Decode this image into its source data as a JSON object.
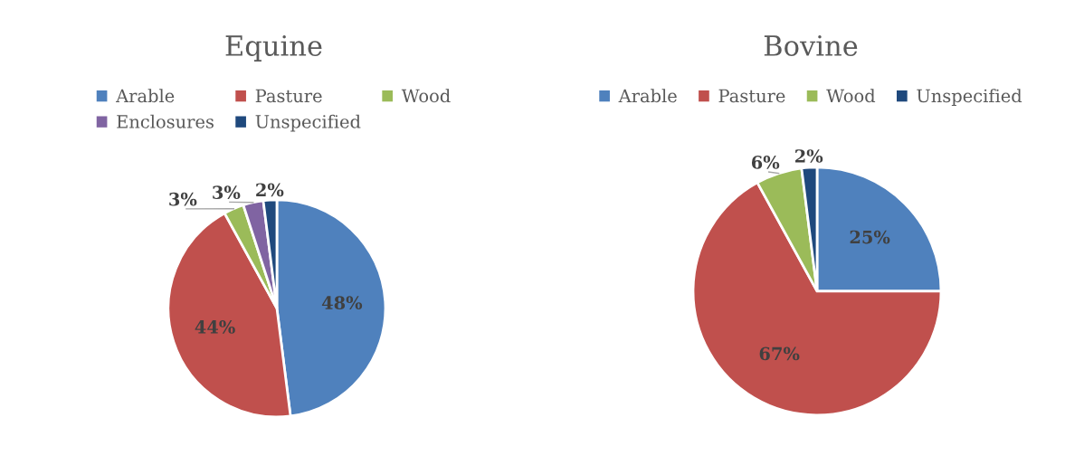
{
  "chart_data": [
    {
      "type": "pie",
      "title": "Equine",
      "categories": [
        "Arable",
        "Pasture",
        "Wood",
        "Enclosures",
        "Unspecified"
      ],
      "values": [
        48,
        44,
        3,
        3,
        2
      ],
      "colors": [
        "#4f81bd",
        "#c0504d",
        "#9bbb59",
        "#8064a2",
        "#1f497d"
      ],
      "value_labels": [
        "48%",
        "44%",
        "3%",
        "3%",
        "2%"
      ],
      "legend": "top"
    },
    {
      "type": "pie",
      "title": "Bovine",
      "categories": [
        "Arable",
        "Pasture",
        "Wood",
        "Unspecified"
      ],
      "values": [
        25,
        67,
        6,
        2
      ],
      "colors": [
        "#4f81bd",
        "#c0504d",
        "#9bbb59",
        "#1f497d"
      ],
      "value_labels": [
        "25%",
        "67%",
        "6%",
        "2%"
      ],
      "legend": "top"
    }
  ]
}
